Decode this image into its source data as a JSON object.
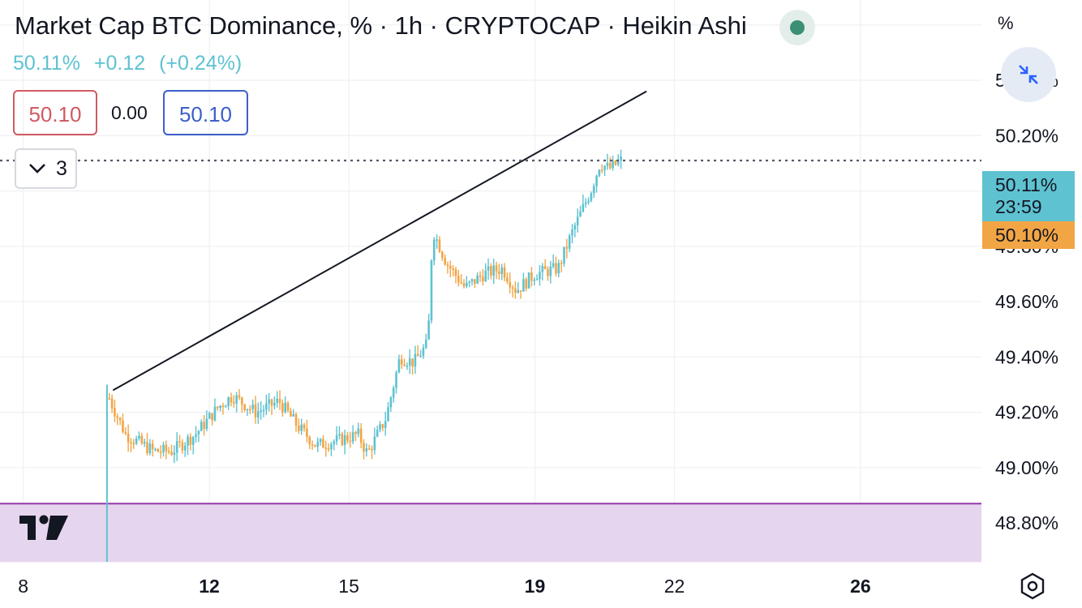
{
  "header": {
    "title": "Market Cap BTC Dominance, % · 1h · CRYPTOCAP · Heikin Ashi",
    "status_color": "#3b8f75"
  },
  "price": {
    "last": "50.11%",
    "change": "+0.12",
    "change_pct": "(+0.24%)",
    "color": "#5ec2d1"
  },
  "trade": {
    "sell": "50.10",
    "spread": "0.00",
    "buy": "50.10"
  },
  "indicators": {
    "collapsed_count": "3"
  },
  "axis": {
    "unit": "%"
  },
  "price_tags": {
    "last_value": "50.11%",
    "countdown": "23:59",
    "prev_value": "50.10%"
  },
  "icons": {
    "status": "status-dot-icon",
    "collapse": "chevron-down-icon",
    "zoom": "compress-arrows-icon",
    "logo": "tradingview-logo-icon",
    "settings": "gear-icon"
  },
  "chart_data": {
    "type": "candlestick",
    "chart_style": "Heikin Ashi",
    "interval": "1h",
    "x_ticks": [
      {
        "label": "8",
        "day": 8,
        "bold": false
      },
      {
        "label": "12",
        "day": 12,
        "bold": true
      },
      {
        "label": "15",
        "day": 15,
        "bold": false
      },
      {
        "label": "19",
        "day": 19,
        "bold": true
      },
      {
        "label": "22",
        "day": 22,
        "bold": false
      },
      {
        "label": "26",
        "day": 26,
        "bold": true
      }
    ],
    "y_ticks": [
      48.8,
      49.0,
      49.2,
      49.4,
      49.6,
      49.8,
      50.2,
      50.4
    ],
    "y_tick_labels": [
      "48.80%",
      "49.00%",
      "49.20%",
      "49.40%",
      "49.60%",
      "49.80%",
      "50.20%",
      "50.40%"
    ],
    "ylim": [
      48.66,
      50.69
    ],
    "xlim_days": [
      7.5,
      28.6
    ],
    "up_color": "#5ec2d1",
    "down_color": "#f2a545",
    "current_value": 50.11,
    "series_anchors": [
      {
        "day": 9.8,
        "value": 48.7
      },
      {
        "day": 9.85,
        "value": 49.25
      },
      {
        "day": 10.2,
        "value": 49.12
      },
      {
        "day": 10.8,
        "value": 49.06
      },
      {
        "day": 11.2,
        "value": 49.06
      },
      {
        "day": 11.7,
        "value": 49.12
      },
      {
        "day": 12.2,
        "value": 49.22
      },
      {
        "day": 12.5,
        "value": 49.26
      },
      {
        "day": 13.0,
        "value": 49.2
      },
      {
        "day": 13.5,
        "value": 49.24
      },
      {
        "day": 13.9,
        "value": 49.15
      },
      {
        "day": 14.3,
        "value": 49.08
      },
      {
        "day": 14.8,
        "value": 49.1
      },
      {
        "day": 15.2,
        "value": 49.12
      },
      {
        "day": 15.4,
        "value": 49.05
      },
      {
        "day": 15.8,
        "value": 49.18
      },
      {
        "day": 16.1,
        "value": 49.4
      },
      {
        "day": 16.4,
        "value": 49.38
      },
      {
        "day": 16.7,
        "value": 49.45
      },
      {
        "day": 16.8,
        "value": 49.86
      },
      {
        "day": 17.1,
        "value": 49.74
      },
      {
        "day": 17.5,
        "value": 49.65
      },
      {
        "day": 17.9,
        "value": 49.7
      },
      {
        "day": 18.3,
        "value": 49.72
      },
      {
        "day": 18.6,
        "value": 49.64
      },
      {
        "day": 19.0,
        "value": 49.7
      },
      {
        "day": 19.5,
        "value": 49.72
      },
      {
        "day": 19.8,
        "value": 49.85
      },
      {
        "day": 20.2,
        "value": 50.0
      },
      {
        "day": 20.4,
        "value": 50.1
      },
      {
        "day": 20.6,
        "value": 50.08
      },
      {
        "day": 20.85,
        "value": 50.11
      }
    ],
    "trendline": {
      "start": {
        "day": 9.93,
        "value": 49.28
      },
      "end": {
        "day": 21.4,
        "value": 50.36
      }
    },
    "zone": {
      "from": 48.66,
      "to": 48.87,
      "color": "#e6d5ee",
      "border": "#9238a8"
    }
  }
}
